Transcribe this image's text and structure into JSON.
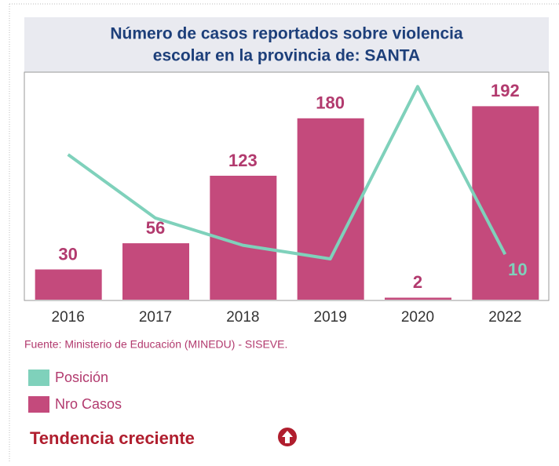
{
  "chart_data": {
    "type": "bar_line",
    "title": [
      "Número de casos reportados sobre violencia",
      "escolar en la provincia de: SANTA"
    ],
    "categories": [
      "2016",
      "2017",
      "2018",
      "2019",
      "2020",
      "2022"
    ],
    "series": [
      {
        "name": "Posición",
        "color": "#7fd1bb",
        "axis": "y2",
        "values": [
          32,
          18,
          12,
          9,
          47,
          10
        ],
        "value_labels": [
          null,
          null,
          null,
          null,
          null,
          "10"
        ]
      },
      {
        "name": "Nro Casos",
        "color": "#c44a7c",
        "values": [
          30,
          56,
          123,
          180,
          2,
          192
        ]
      }
    ],
    "ylim": [
      0,
      225
    ],
    "y2lim": [
      0,
      50
    ],
    "source": "Fuente: Ministerio de Educación (MINEDU) - SISEVE.",
    "trend": "Tendencia creciente"
  }
}
